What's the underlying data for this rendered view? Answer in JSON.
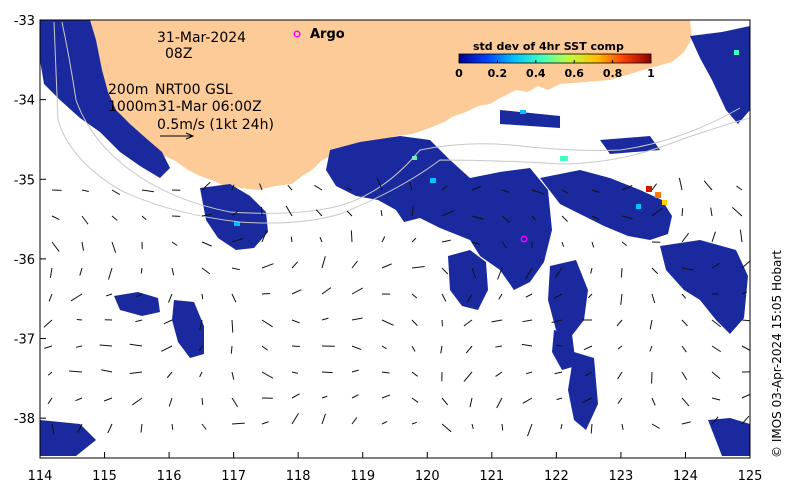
{
  "map": {
    "x_range": [
      114,
      125
    ],
    "y_range": [
      -38.5,
      -33
    ],
    "x_ticks": [
      114,
      115,
      116,
      117,
      118,
      119,
      120,
      121,
      122,
      123,
      124,
      125
    ],
    "y_ticks": [
      -33,
      -34,
      -35,
      -36,
      -37,
      -38
    ],
    "x_tick_labels": [
      "114",
      "115",
      "116",
      "117",
      "118",
      "119",
      "120",
      "121",
      "122",
      "123",
      "124",
      "125"
    ],
    "y_tick_labels": [
      "-33",
      "-34",
      "-35",
      "-36",
      "-37",
      "-38"
    ],
    "colors": {
      "land": "#fdcb98",
      "ocean": "#ffffff",
      "sst_low": "#1a2a9e"
    }
  },
  "info": {
    "date": "31-Mar-2024",
    "hour": "08Z",
    "contour_1": "200m",
    "contour_2": "1000m",
    "currents": "NRT00 GSL",
    "currents_time": "31-Mar 06:00Z",
    "vector_scale": "0.5m/s (1kt 24h)"
  },
  "argo": {
    "label": "Argo",
    "color": "#ff00ff",
    "float_lon": 121.5,
    "float_lat": -35.75
  },
  "colorbar": {
    "title": "std dev of 4hr SST comp",
    "ticks": [
      0,
      0.2,
      0.4,
      0.6,
      0.8,
      1
    ],
    "tick_labels": [
      "0",
      "0.2",
      "0.4",
      "0.6",
      "0.8",
      "1"
    ],
    "stops": [
      "#00008f",
      "#0040ff",
      "#00c0ff",
      "#40ffbf",
      "#bfff40",
      "#ffc000",
      "#ff4000",
      "#8f0000"
    ]
  },
  "credit": "© IMOS 03-Apr-2024 15:05 Hobart"
}
